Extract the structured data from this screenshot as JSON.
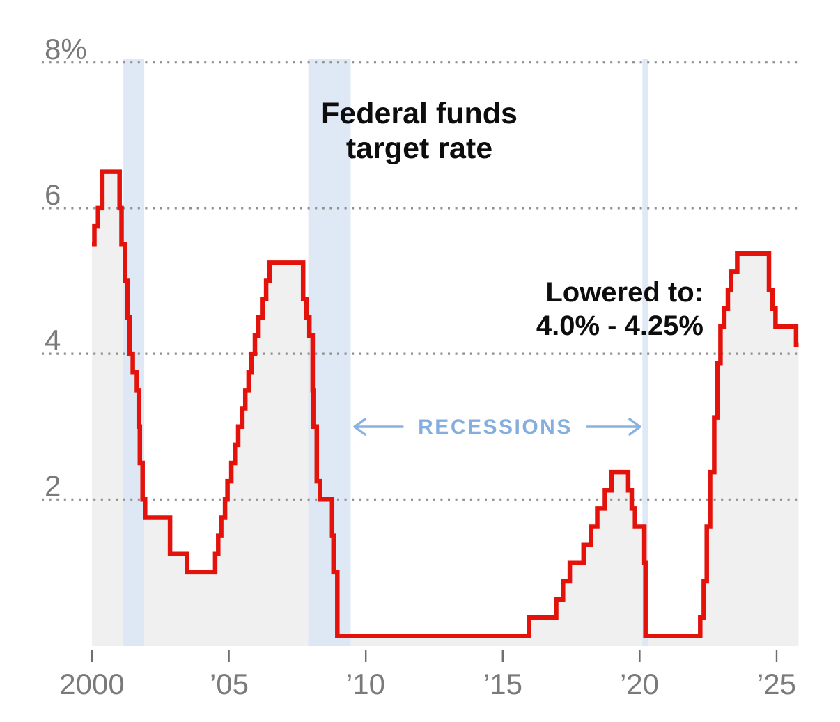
{
  "chart_data": {
    "type": "area-step",
    "title": {
      "line1": "Federal funds",
      "line2": "target rate"
    },
    "annotation": {
      "line1": "Lowered to:",
      "line2": "4.0% - 4.25%"
    },
    "recessions_label": "RECESSIONS",
    "legend_position": "none",
    "grid": "dotted-horizontal",
    "y_axis": {
      "range": [
        0,
        8.2
      ],
      "unit": "percent",
      "ticks": [
        {
          "value": 8,
          "label": "8%"
        },
        {
          "value": 6,
          "label": "6"
        },
        {
          "value": 4,
          "label": "4"
        },
        {
          "value": 2,
          "label": "2"
        }
      ]
    },
    "x_axis": {
      "range": [
        2000,
        2025.82
      ],
      "ticks": [
        {
          "year": 2000,
          "label": "2000"
        },
        {
          "year": 2005,
          "label": "’05"
        },
        {
          "year": 2010,
          "label": "’10"
        },
        {
          "year": 2015,
          "label": "’15"
        },
        {
          "year": 2020,
          "label": "’20"
        },
        {
          "year": 2025,
          "label": "’25"
        }
      ]
    },
    "series": [
      {
        "name": "Federal funds target rate (range midpoint, %)",
        "end_year": 2025.8,
        "steps": [
          [
            2000.0,
            5.5
          ],
          [
            2000.09,
            5.75
          ],
          [
            2000.22,
            6.0
          ],
          [
            2000.38,
            6.5
          ],
          [
            2001.01,
            6.0
          ],
          [
            2001.08,
            5.5
          ],
          [
            2001.21,
            5.0
          ],
          [
            2001.3,
            4.5
          ],
          [
            2001.37,
            4.0
          ],
          [
            2001.49,
            3.75
          ],
          [
            2001.64,
            3.5
          ],
          [
            2001.71,
            3.0
          ],
          [
            2001.75,
            2.5
          ],
          [
            2001.85,
            2.0
          ],
          [
            2001.94,
            1.75
          ],
          [
            2002.85,
            1.25
          ],
          [
            2003.48,
            1.0
          ],
          [
            2004.5,
            1.25
          ],
          [
            2004.61,
            1.5
          ],
          [
            2004.72,
            1.75
          ],
          [
            2004.86,
            2.0
          ],
          [
            2004.95,
            2.25
          ],
          [
            2005.09,
            2.5
          ],
          [
            2005.22,
            2.75
          ],
          [
            2005.34,
            3.0
          ],
          [
            2005.49,
            3.25
          ],
          [
            2005.6,
            3.5
          ],
          [
            2005.72,
            3.75
          ],
          [
            2005.83,
            4.0
          ],
          [
            2005.95,
            4.25
          ],
          [
            2006.08,
            4.5
          ],
          [
            2006.24,
            4.75
          ],
          [
            2006.36,
            5.0
          ],
          [
            2006.49,
            5.25
          ],
          [
            2007.71,
            4.75
          ],
          [
            2007.83,
            4.5
          ],
          [
            2007.94,
            4.25
          ],
          [
            2008.06,
            3.5
          ],
          [
            2008.08,
            3.0
          ],
          [
            2008.21,
            2.25
          ],
          [
            2008.33,
            2.0
          ],
          [
            2008.77,
            1.5
          ],
          [
            2008.82,
            1.0
          ],
          [
            2008.96,
            0.125
          ],
          [
            2015.96,
            0.375
          ],
          [
            2016.95,
            0.625
          ],
          [
            2017.2,
            0.875
          ],
          [
            2017.45,
            1.125
          ],
          [
            2017.95,
            1.375
          ],
          [
            2018.22,
            1.625
          ],
          [
            2018.45,
            1.875
          ],
          [
            2018.73,
            2.125
          ],
          [
            2018.97,
            2.375
          ],
          [
            2019.58,
            2.125
          ],
          [
            2019.71,
            1.875
          ],
          [
            2019.83,
            1.625
          ],
          [
            2020.17,
            1.125
          ],
          [
            2020.21,
            0.125
          ],
          [
            2022.21,
            0.375
          ],
          [
            2022.34,
            0.875
          ],
          [
            2022.45,
            1.625
          ],
          [
            2022.57,
            2.375
          ],
          [
            2022.72,
            3.125
          ],
          [
            2022.84,
            3.875
          ],
          [
            2022.95,
            4.375
          ],
          [
            2023.09,
            4.625
          ],
          [
            2023.22,
            4.875
          ],
          [
            2023.34,
            5.125
          ],
          [
            2023.56,
            5.375
          ],
          [
            2024.72,
            4.875
          ],
          [
            2024.85,
            4.625
          ],
          [
            2024.96,
            4.375
          ],
          [
            2025.71,
            4.125
          ]
        ]
      }
    ],
    "recessions": [
      {
        "start": 2001.15,
        "end": 2001.91
      },
      {
        "start": 2007.9,
        "end": 2009.45
      },
      {
        "start": 2020.1,
        "end": 2020.3
      }
    ]
  },
  "colors": {
    "line": "#e3120b",
    "area_fill": "#f0f0f0",
    "recession_band": "#dbe6f4",
    "recession_label": "#85aede",
    "arrow": "#8ab2e0",
    "grid_dots": "#8f8f8f",
    "axis_text": "#7a7a7a",
    "tick": "#6e6e6e",
    "title_text": "#0d0d0d"
  }
}
